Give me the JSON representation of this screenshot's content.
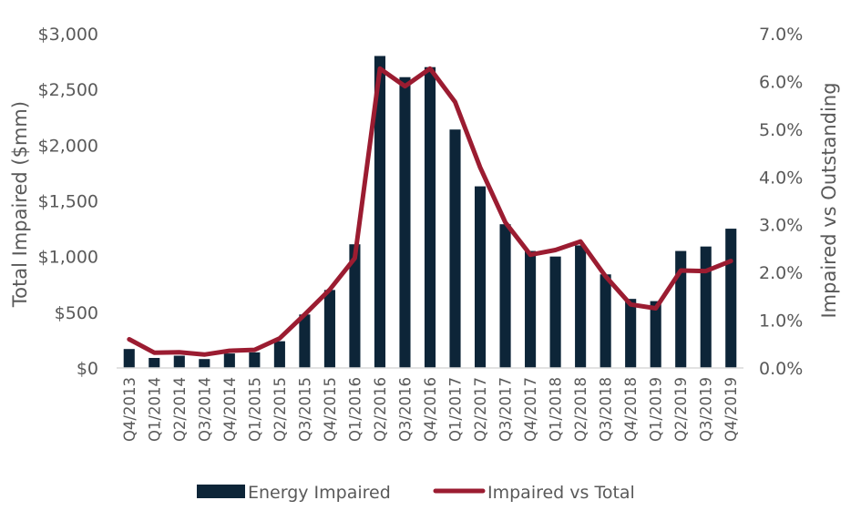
{
  "chart_data": {
    "type": "bar+line",
    "categories": [
      "Q4/2013",
      "Q1/2014",
      "Q2/2014",
      "Q3/2014",
      "Q4/2014",
      "Q1/2015",
      "Q2/2015",
      "Q3/2015",
      "Q4/2015",
      "Q1/2016",
      "Q2/2016",
      "Q3/2016",
      "Q4/2016",
      "Q1/2017",
      "Q2/2017",
      "Q3/2017",
      "Q4/2017",
      "Q1/2018",
      "Q2/2018",
      "Q3/2018",
      "Q4/2018",
      "Q1/2019",
      "Q2/2019",
      "Q3/2019",
      "Q4/2019"
    ],
    "series": [
      {
        "name": "Energy Impaired",
        "type": "bar",
        "axis": "left",
        "color": "#0d2538",
        "values": [
          170,
          90,
          110,
          80,
          130,
          140,
          240,
          480,
          700,
          1110,
          2800,
          2610,
          2700,
          2140,
          1630,
          1290,
          1050,
          1000,
          1100,
          840,
          620,
          600,
          1050,
          1090,
          1250
        ]
      },
      {
        "name": "Impaired vs Total",
        "type": "line",
        "axis": "right",
        "color": "#9b1c31",
        "values": [
          0.6,
          0.32,
          0.33,
          0.28,
          0.36,
          0.38,
          0.62,
          1.12,
          1.64,
          2.3,
          6.27,
          5.9,
          6.27,
          5.57,
          4.2,
          3.05,
          2.37,
          2.47,
          2.65,
          1.92,
          1.33,
          1.25,
          2.04,
          2.03,
          2.24
        ]
      }
    ],
    "yAxisLeft": {
      "title": "Total Impaired ($mm)",
      "ylim": [
        0,
        3000
      ],
      "ticks": [
        0,
        500,
        1000,
        1500,
        2000,
        2500,
        3000
      ],
      "tick_labels": [
        "$0",
        "$500",
        "$1,000",
        "$1,500",
        "$2,000",
        "$2,500",
        "$3,000"
      ]
    },
    "yAxisRight": {
      "title": "Impaired vs Outstanding",
      "ylim": [
        0,
        7
      ],
      "ticks": [
        0,
        1,
        2,
        3,
        4,
        5,
        6,
        7
      ],
      "tick_labels": [
        "0.0%",
        "1.0%",
        "2.0%",
        "3.0%",
        "4.0%",
        "5.0%",
        "6.0%",
        "7.0%"
      ]
    },
    "legend": {
      "position": "bottom",
      "items": [
        "Energy Impaired",
        "Impaired vs Total"
      ]
    },
    "grid": false
  }
}
